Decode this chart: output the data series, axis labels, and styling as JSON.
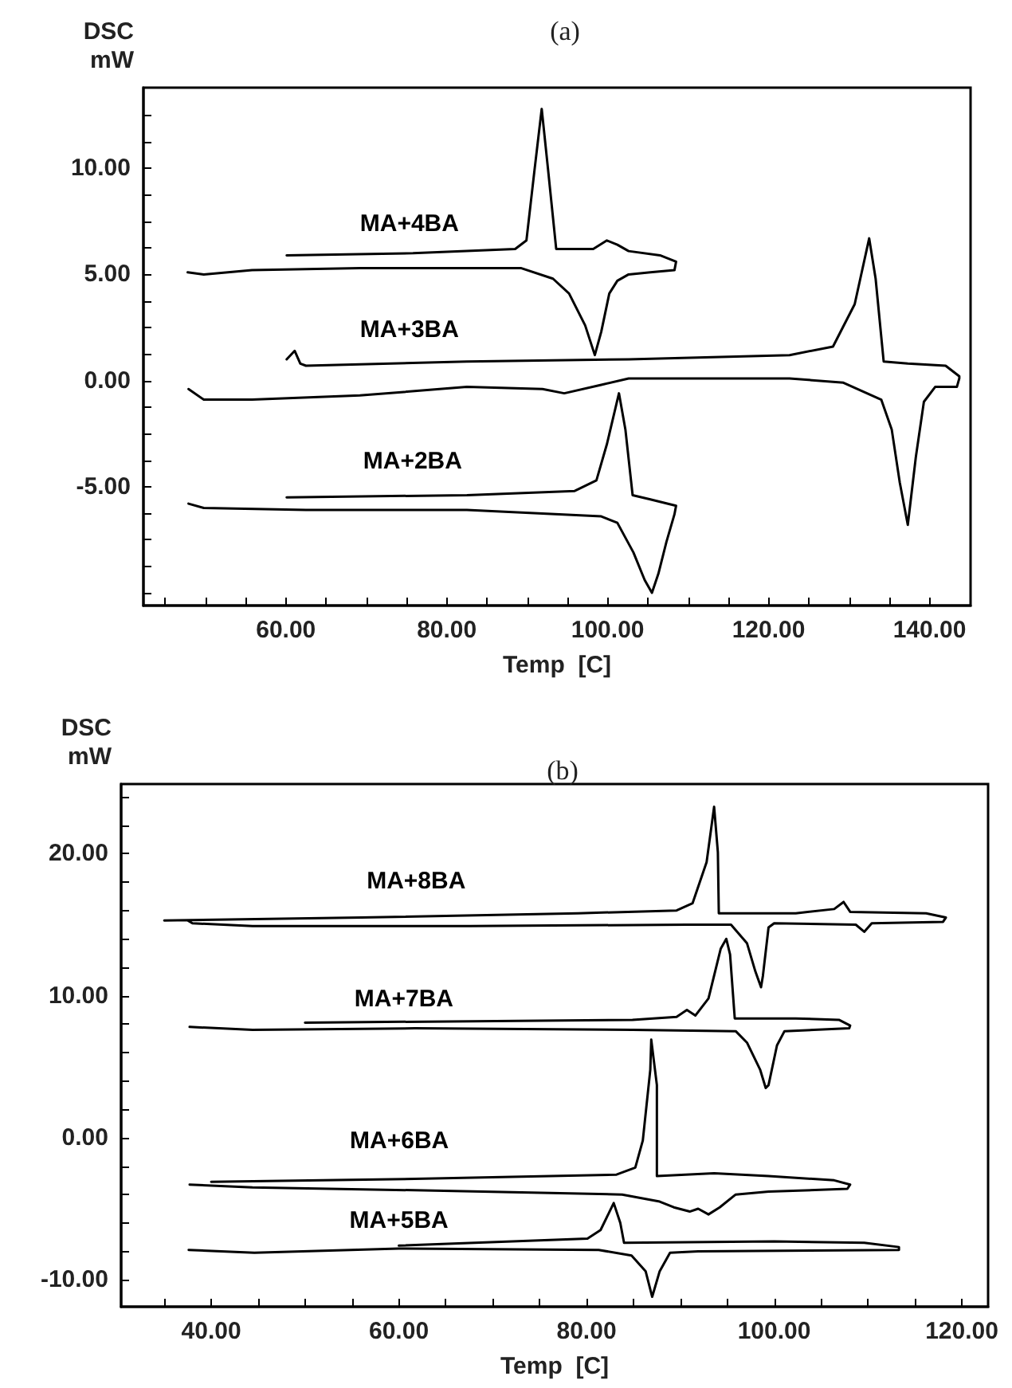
{
  "chart_data": [
    {
      "type": "line",
      "title": "(a)",
      "xlabel": "Temp  [C]",
      "ylabel": "DSC\nmW",
      "grid": false,
      "xlim": [
        42.3,
        145.1
      ],
      "ylim": [
        -10.6,
        13.8
      ],
      "xticks": [
        {
          "value": 45,
          "label": null
        },
        {
          "value": 50,
          "label": null
        },
        {
          "value": 55,
          "label": null
        },
        {
          "value": 60,
          "label": "60.00"
        },
        {
          "value": 65,
          "label": null
        },
        {
          "value": 70,
          "label": null
        },
        {
          "value": 75,
          "label": null
        },
        {
          "value": 80,
          "label": "80.00"
        },
        {
          "value": 85,
          "label": null
        },
        {
          "value": 90,
          "label": null
        },
        {
          "value": 95,
          "label": null
        },
        {
          "value": 100,
          "label": "100.00"
        },
        {
          "value": 105,
          "label": null
        },
        {
          "value": 110,
          "label": null
        },
        {
          "value": 115,
          "label": null
        },
        {
          "value": 120,
          "label": "120.00"
        },
        {
          "value": 125,
          "label": null
        },
        {
          "value": 130,
          "label": null
        },
        {
          "value": 135,
          "label": null
        },
        {
          "value": 140,
          "label": "140.00"
        }
      ],
      "yticks": [
        {
          "value": -10,
          "label": null
        },
        {
          "value": -8.75,
          "label": null
        },
        {
          "value": -7.5,
          "label": null
        },
        {
          "value": -6.25,
          "label": null
        },
        {
          "value": -5,
          "label": "-5.00"
        },
        {
          "value": -3.75,
          "label": null
        },
        {
          "value": -2.5,
          "label": null
        },
        {
          "value": -1.25,
          "label": null
        },
        {
          "value": 0,
          "label": "0.00"
        },
        {
          "value": 1.25,
          "label": null
        },
        {
          "value": 2.5,
          "label": null
        },
        {
          "value": 3.75,
          "label": null
        },
        {
          "value": 5,
          "label": "5.00"
        },
        {
          "value": 6.25,
          "label": null
        },
        {
          "value": 7.5,
          "label": null
        },
        {
          "value": 8.75,
          "label": null
        },
        {
          "value": 10,
          "label": "10.00"
        },
        {
          "value": 11.25,
          "label": null
        },
        {
          "value": 12.5,
          "label": null
        }
      ],
      "series": [
        {
          "name": "MA+4BA",
          "color": "#000000",
          "x": [
            60.1,
            75.8,
            88.5,
            89.9,
            90.9,
            91.8,
            92.6,
            93.6,
            98.2,
            99.9,
            101.2,
            102.6,
            106.5,
            108.5,
            108.3,
            105.3,
            102.6,
            101.2,
            100.2,
            99.2,
            98.4,
            97.2,
            95.2,
            93.2,
            89.2,
            82.5,
            69.2,
            55.8,
            49.8,
            47.8
          ],
          "values": [
            5.9,
            6.0,
            6.2,
            6.6,
            9.9,
            12.8,
            9.9,
            6.2,
            6.2,
            6.6,
            6.4,
            6.1,
            5.9,
            5.6,
            5.2,
            5.1,
            5.0,
            4.7,
            4.1,
            2.3,
            1.2,
            2.6,
            4.1,
            4.8,
            5.3,
            5.3,
            5.3,
            5.2,
            5.0,
            5.1
          ]
        },
        {
          "name": "MA+3BA",
          "color": "#000000",
          "x": [
            60.1,
            61.1,
            61.8,
            62.5,
            82.5,
            102.6,
            122.6,
            128.0,
            130.7,
            132.5,
            133.3,
            134.3,
            137.3,
            142.0,
            143.7,
            143.7,
            143.4,
            140.7,
            139.3,
            138.3,
            137.3,
            136.3,
            135.3,
            134.0,
            129.3,
            122.6,
            102.6,
            99.2,
            94.6,
            91.9,
            82.5,
            69.2,
            55.8,
            49.8,
            47.9
          ],
          "values": [
            1.0,
            1.4,
            0.8,
            0.7,
            0.9,
            1.0,
            1.2,
            1.6,
            3.6,
            6.7,
            4.8,
            0.9,
            0.8,
            0.7,
            0.2,
            0.1,
            -0.3,
            -0.3,
            -1.0,
            -3.6,
            -6.8,
            -4.8,
            -2.3,
            -0.9,
            -0.1,
            0.1,
            0.1,
            -0.2,
            -0.6,
            -0.4,
            -0.3,
            -0.7,
            -0.9,
            -0.9,
            -0.4
          ]
        },
        {
          "name": "MA+2BA",
          "color": "#000000",
          "x": [
            60.1,
            82.5,
            95.9,
            98.6,
            99.9,
            101.4,
            102.2,
            103.1,
            105.3,
            108.5,
            108.3,
            107.3,
            106.3,
            105.5,
            104.6,
            103.2,
            101.2,
            99.2,
            82.5,
            62.5,
            49.8,
            47.9
          ],
          "values": [
            -5.5,
            -5.4,
            -5.2,
            -4.7,
            -3.0,
            -0.6,
            -2.3,
            -5.4,
            -5.6,
            -5.9,
            -6.3,
            -7.6,
            -9.1,
            -10.0,
            -9.4,
            -8.1,
            -6.7,
            -6.4,
            -6.1,
            -6.1,
            -6.0,
            -5.8
          ]
        }
      ]
    },
    {
      "type": "line",
      "title": "(b)",
      "xlabel": "Temp  [C]",
      "ylabel": "DSC\nmW",
      "grid": false,
      "xlim": [
        30.4,
        122.8
      ],
      "ylim": [
        -11.9,
        24.9
      ],
      "xticks": [
        {
          "value": 35,
          "label": null
        },
        {
          "value": 40,
          "label": "40.00"
        },
        {
          "value": 45,
          "label": null
        },
        {
          "value": 50,
          "label": null
        },
        {
          "value": 55,
          "label": null
        },
        {
          "value": 60,
          "label": "60.00"
        },
        {
          "value": 65,
          "label": null
        },
        {
          "value": 70,
          "label": null
        },
        {
          "value": 75,
          "label": null
        },
        {
          "value": 80,
          "label": "80.00"
        },
        {
          "value": 85,
          "label": null
        },
        {
          "value": 90,
          "label": null
        },
        {
          "value": 95,
          "label": null
        },
        {
          "value": 100,
          "label": "100.00"
        },
        {
          "value": 105,
          "label": null
        },
        {
          "value": 110,
          "label": null
        },
        {
          "value": 115,
          "label": null
        },
        {
          "value": 120,
          "label": "120.00"
        }
      ],
      "yticks": [
        {
          "value": -10,
          "label": "-10.00"
        },
        {
          "value": -8,
          "label": null
        },
        {
          "value": -6,
          "label": null
        },
        {
          "value": -4,
          "label": null
        },
        {
          "value": -2,
          "label": null
        },
        {
          "value": 0,
          "label": "0.00"
        },
        {
          "value": 2,
          "label": null
        },
        {
          "value": 4,
          "label": null
        },
        {
          "value": 6,
          "label": null
        },
        {
          "value": 8,
          "label": null
        },
        {
          "value": 10,
          "label": "10.00"
        },
        {
          "value": 12,
          "label": null
        },
        {
          "value": 14,
          "label": null
        },
        {
          "value": 16,
          "label": null
        },
        {
          "value": 18,
          "label": null
        },
        {
          "value": 20,
          "label": "20.00"
        },
        {
          "value": 22,
          "label": null
        },
        {
          "value": 24,
          "label": null
        }
      ],
      "series": [
        {
          "name": "MA+8BA",
          "color": "#000000",
          "x": [
            35.0,
            56.0,
            79.1,
            89.6,
            91.3,
            92.8,
            93.6,
            94.0,
            94.1,
            102.3,
            106.4,
            107.4,
            108.1,
            116.2,
            118.3,
            118.0,
            110.4,
            109.6,
            108.7,
            100.0,
            99.4,
            98.8,
            98.6,
            98.0,
            97.1,
            95.4,
            90.7,
            67.6,
            44.4,
            38.0,
            37.5
          ],
          "values": [
            15.3,
            15.5,
            15.8,
            16.0,
            16.5,
            19.4,
            23.3,
            20.1,
            15.8,
            15.8,
            16.1,
            16.6,
            15.9,
            15.8,
            15.5,
            15.2,
            15.1,
            14.5,
            15.0,
            15.1,
            14.8,
            11.4,
            10.6,
            11.7,
            13.7,
            15.0,
            15.0,
            14.9,
            14.9,
            15.1,
            15.3
          ]
        },
        {
          "name": "MA+7BA",
          "color": "#000000",
          "x": [
            50.0,
            84.9,
            89.6,
            90.7,
            91.6,
            93.0,
            94.3,
            94.9,
            95.3,
            95.8,
            102.3,
            106.9,
            108.1,
            108.0,
            101.1,
            100.3,
            99.4,
            99.1,
            98.5,
            97.1,
            95.9,
            84.9,
            61.7,
            44.4,
            37.7
          ],
          "values": [
            8.1,
            8.3,
            8.5,
            9.0,
            8.6,
            9.8,
            13.3,
            14.0,
            12.9,
            8.4,
            8.4,
            8.3,
            7.9,
            7.7,
            7.5,
            6.5,
            3.7,
            3.5,
            4.8,
            6.7,
            7.5,
            7.6,
            7.7,
            7.6,
            7.8
          ]
        },
        {
          "name": "MA+6BA",
          "color": "#000000",
          "x": [
            40.0,
            61.7,
            83.2,
            85.2,
            86.0,
            86.8,
            86.9,
            87.5,
            87.5,
            93.6,
            99.4,
            106.4,
            108.1,
            107.8,
            99.4,
            95.9,
            94.2,
            93.0,
            91.9,
            91.0,
            89.3,
            87.8,
            83.8,
            61.7,
            44.4,
            37.7
          ],
          "values": [
            -3.1,
            -2.9,
            -2.6,
            -2.1,
            -0.2,
            4.8,
            6.9,
            3.7,
            -2.7,
            -2.5,
            -2.7,
            -3.0,
            -3.3,
            -3.6,
            -3.8,
            -4.0,
            -4.9,
            -5.4,
            -5.0,
            -5.2,
            -4.9,
            -4.5,
            -4.0,
            -3.7,
            -3.5,
            -3.3
          ]
        },
        {
          "name": "MA+5BA",
          "color": "#000000",
          "x": [
            60.0,
            80.1,
            81.5,
            82.9,
            83.6,
            84.0,
            100.0,
            109.6,
            113.3,
            113.3,
            91.9,
            88.9,
            87.8,
            87.0,
            86.3,
            84.8,
            81.3,
            60.0,
            44.6,
            37.6
          ],
          "values": [
            -7.6,
            -7.1,
            -6.5,
            -4.6,
            -6.0,
            -7.4,
            -7.3,
            -7.4,
            -7.7,
            -7.9,
            -8.0,
            -8.1,
            -9.4,
            -11.2,
            -9.4,
            -8.3,
            -7.9,
            -7.8,
            -8.1,
            -7.9
          ]
        }
      ]
    }
  ]
}
